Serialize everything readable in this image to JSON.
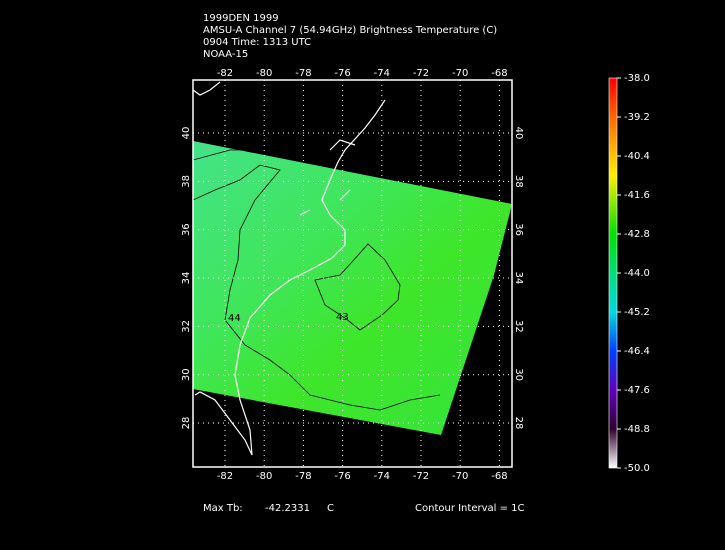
{
  "header": {
    "lines": [
      "1999DEN 1999",
      "AMSU-A Channel 7 (54.94GHz) Brightness Temperature (C)",
      "0904 Time: 1313 UTC",
      "NOAA-15"
    ]
  },
  "map": {
    "lon_ticks": [
      -82,
      -80,
      -78,
      -76,
      -74,
      -72,
      -70,
      -68
    ],
    "lat_ticks": [
      28,
      30,
      32,
      34,
      36,
      38,
      40
    ],
    "contour_labels": [
      "43",
      "44"
    ]
  },
  "colorbar": {
    "range": [
      -50,
      -38
    ],
    "ticks": [
      {
        "value": -38,
        "label": "-38.0"
      },
      {
        "value": -39.2,
        "label": "-39.2"
      },
      {
        "value": -40.4,
        "label": "-40.4"
      },
      {
        "value": -41.6,
        "label": "-41.6"
      },
      {
        "value": -42.8,
        "label": "-42.8"
      },
      {
        "value": -44,
        "label": "-44.0"
      },
      {
        "value": -45.2,
        "label": "-45.2"
      },
      {
        "value": -46.4,
        "label": "-46.4"
      },
      {
        "value": -47.6,
        "label": "-47.6"
      },
      {
        "value": -48.8,
        "label": "-48.8"
      },
      {
        "value": -50,
        "label": "-50.0"
      }
    ]
  },
  "footer": {
    "max_label": "Max Tb:",
    "max_value": -42.2331,
    "unit": "C",
    "contour_interval": "Contour Interval = 1C"
  }
}
